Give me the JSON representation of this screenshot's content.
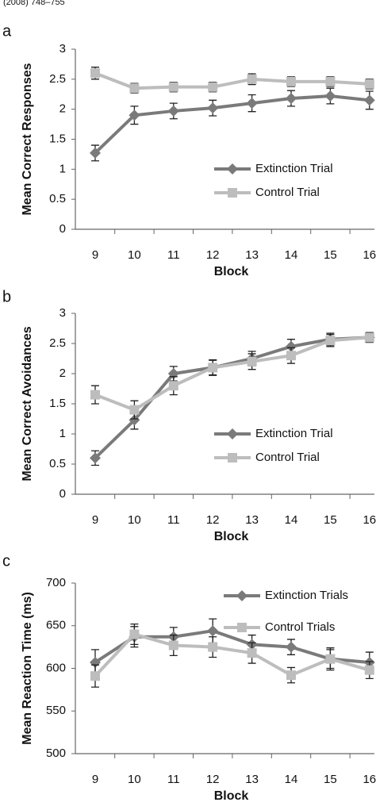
{
  "caption": "(2008) 748–755",
  "chart_data": [
    {
      "type": "line",
      "label": "a",
      "y_label": "Mean Correct Responses",
      "x_label": "Block",
      "categories": [
        "9",
        "10",
        "11",
        "12",
        "13",
        "14",
        "15",
        "16"
      ],
      "ylim": [
        0,
        3
      ],
      "yticks": [
        0,
        0.5,
        1,
        1.5,
        2,
        2.5,
        3
      ],
      "legend": "lower right",
      "series": [
        {
          "name": "Extinction Trial",
          "color": "#7a7a7a",
          "marker": "diamond",
          "values": [
            1.27,
            1.9,
            1.97,
            2.02,
            2.1,
            2.18,
            2.22,
            2.15
          ],
          "errors": [
            0.13,
            0.15,
            0.13,
            0.13,
            0.14,
            0.13,
            0.13,
            0.15
          ]
        },
        {
          "name": "Control Trial",
          "color": "#bdbdbd",
          "marker": "square",
          "values": [
            2.6,
            2.35,
            2.37,
            2.37,
            2.5,
            2.46,
            2.46,
            2.42
          ],
          "errors": [
            0.1,
            0.08,
            0.08,
            0.08,
            0.09,
            0.08,
            0.08,
            0.08
          ]
        }
      ]
    },
    {
      "type": "line",
      "label": "b",
      "y_label": "Mean Correct Avoidances",
      "x_label": "Block",
      "categories": [
        "9",
        "10",
        "11",
        "12",
        "13",
        "14",
        "15",
        "16"
      ],
      "ylim": [
        0,
        3
      ],
      "yticks": [
        0,
        0.5,
        1,
        1.5,
        2,
        2.5,
        3
      ],
      "legend": "lower right",
      "series": [
        {
          "name": "Extinction Trial",
          "color": "#7a7a7a",
          "marker": "diamond",
          "values": [
            0.6,
            1.23,
            2.0,
            2.1,
            2.25,
            2.45,
            2.57,
            2.6
          ],
          "errors": [
            0.12,
            0.15,
            0.12,
            0.13,
            0.12,
            0.12,
            0.1,
            0.08
          ]
        },
        {
          "name": "Control Trial",
          "color": "#bdbdbd",
          "marker": "square",
          "values": [
            1.65,
            1.4,
            1.8,
            2.1,
            2.2,
            2.3,
            2.55,
            2.6
          ],
          "errors": [
            0.15,
            0.15,
            0.15,
            0.12,
            0.13,
            0.13,
            0.1,
            0.08
          ]
        }
      ]
    },
    {
      "type": "line",
      "label": "c",
      "y_label": "Mean Reaction Time (ms)",
      "x_label": "Block",
      "categories": [
        "9",
        "10",
        "11",
        "12",
        "13",
        "14",
        "15",
        "16"
      ],
      "ylim": [
        500,
        700
      ],
      "yticks": [
        500,
        550,
        600,
        650,
        700
      ],
      "legend": "upper right",
      "series": [
        {
          "name": "Extinction Trials",
          "color": "#7a7a7a",
          "marker": "diamond",
          "values": [
            607,
            637,
            637,
            644,
            628,
            625,
            611,
            607
          ],
          "errors": [
            15,
            12,
            11,
            14,
            11,
            9,
            11,
            12
          ]
        },
        {
          "name": "Control Trials",
          "color": "#bdbdbd",
          "marker": "square",
          "values": [
            591,
            640,
            627,
            625,
            618,
            592,
            611,
            598
          ],
          "errors": [
            13,
            12,
            12,
            12,
            12,
            9,
            13,
            10
          ]
        }
      ]
    }
  ]
}
